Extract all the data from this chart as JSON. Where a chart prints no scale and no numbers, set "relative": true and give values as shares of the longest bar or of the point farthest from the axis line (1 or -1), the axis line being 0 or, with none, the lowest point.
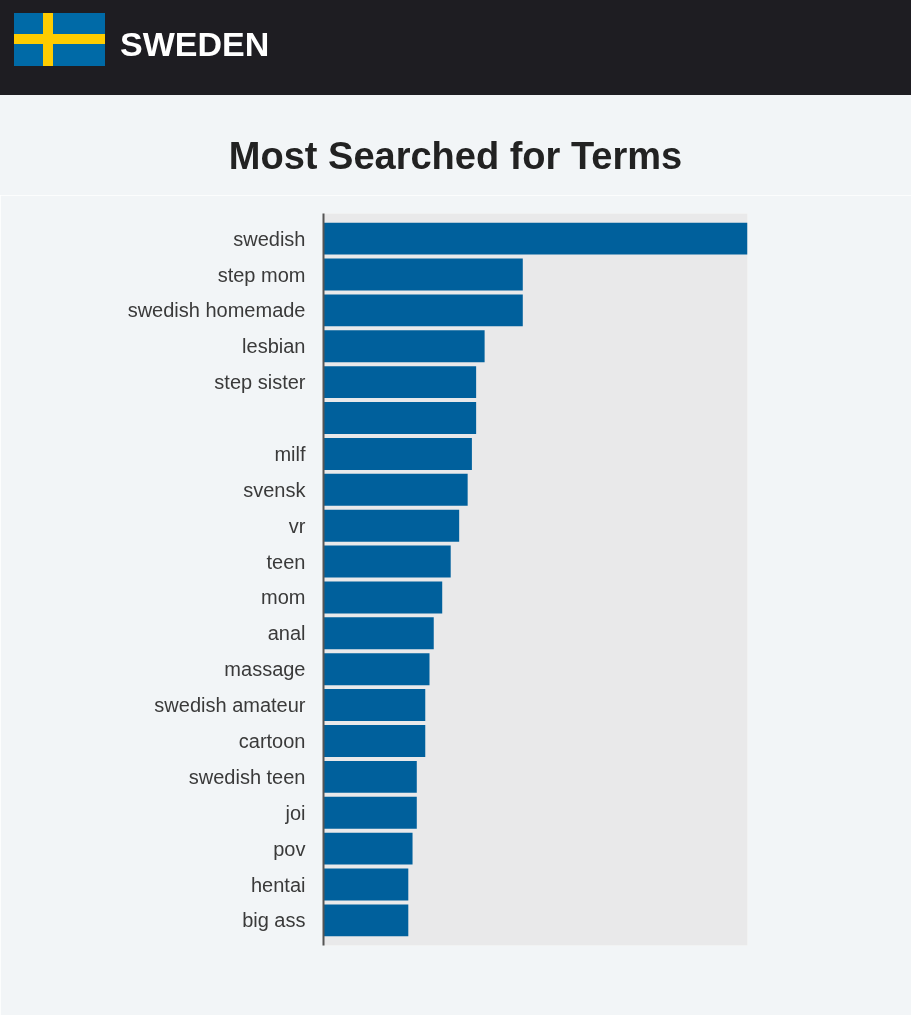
{
  "chart_data": {
    "type": "bar",
    "orientation": "horizontal",
    "relative": true,
    "title": "SWEDEN",
    "subtitle": "Most Searched for Terms",
    "color": "#00609c",
    "categories": [
      "swedish",
      "step mom",
      "swedish homemade",
      "lesbian",
      "step sister",
      null,
      "milf",
      "svensk",
      "vr",
      "teen",
      "mom",
      "anal",
      "massage",
      "swedish amateur",
      "cartoon",
      "swedish teen",
      "joi",
      "pov",
      "hentai",
      "big ass"
    ],
    "values": [
      1,
      0.47,
      0.47,
      0.38,
      0.36,
      0.36,
      0.35,
      0.34,
      0.32,
      0.3,
      0.28,
      0.26,
      0.25,
      0.24,
      0.24,
      0.22,
      0.22,
      0.21,
      0.2,
      0.2
    ]
  }
}
